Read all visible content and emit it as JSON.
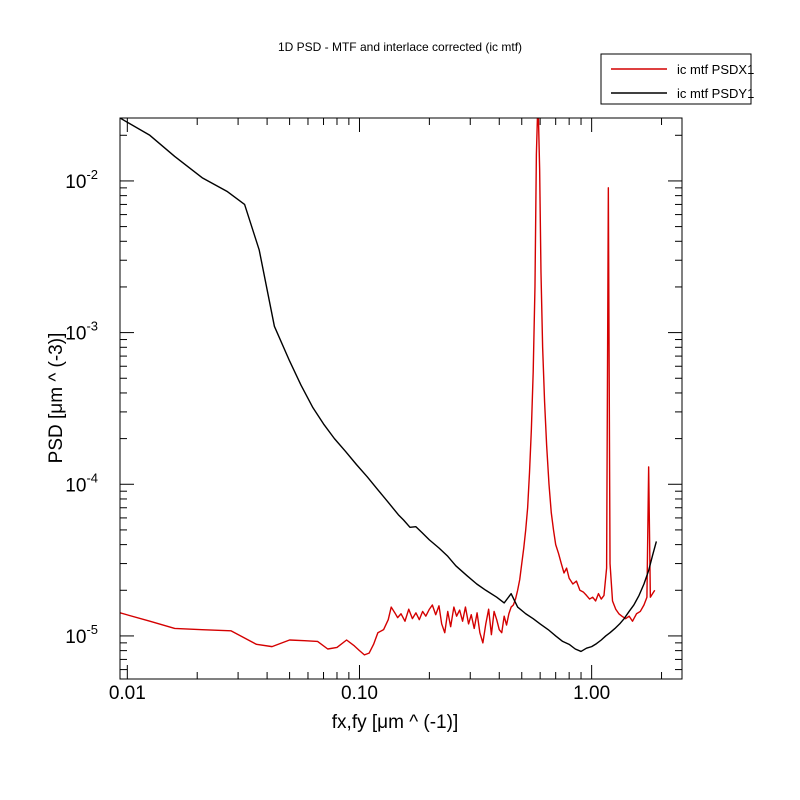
{
  "chart_data": {
    "type": "line",
    "title": "1D PSD -  MTF and interlace corrected (ic mtf)",
    "xlabel": "fx,fy [μm ^ (-1)]",
    "ylabel": "PSD [μm ^ (-3)]",
    "x_scale": "log",
    "y_scale": "log",
    "xlim": [
      0.0093,
      2.45
    ],
    "ylim": [
      5.2e-06,
      0.026
    ],
    "x_ticks": [
      {
        "value": 0.01,
        "label": "0.01"
      },
      {
        "value": 0.1,
        "label": "0.10"
      },
      {
        "value": 1.0,
        "label": "1.00"
      }
    ],
    "y_ticks": [
      {
        "value": 1e-05,
        "mantissa": "10",
        "exp": "-5"
      },
      {
        "value": 0.0001,
        "mantissa": "10",
        "exp": "-4"
      },
      {
        "value": 0.001,
        "mantissa": "10",
        "exp": "-3"
      },
      {
        "value": 0.01,
        "mantissa": "10",
        "exp": "-2"
      }
    ],
    "legend_position": "top-right",
    "series": [
      {
        "name": "ic mtf PSDX1",
        "color": "#d40000",
        "points": [
          [
            0.0093,
            1.42e-05
          ],
          [
            0.0125,
            1.25e-05
          ],
          [
            0.016,
            1.12e-05
          ],
          [
            0.021,
            1.1e-05
          ],
          [
            0.028,
            1.08e-05
          ],
          [
            0.036,
            8.8e-06
          ],
          [
            0.042,
            8.5e-06
          ],
          [
            0.05,
            9.4e-06
          ],
          [
            0.058,
            9.3e-06
          ],
          [
            0.066,
            9.2e-06
          ],
          [
            0.073,
            8.2e-06
          ],
          [
            0.08,
            8.4e-06
          ],
          [
            0.088,
            9.4e-06
          ],
          [
            0.095,
            8.6e-06
          ],
          [
            0.1,
            8e-06
          ],
          [
            0.105,
            7.5e-06
          ],
          [
            0.11,
            7.7e-06
          ],
          [
            0.115,
            8.8e-06
          ],
          [
            0.12,
            1.05e-05
          ],
          [
            0.127,
            1.1e-05
          ],
          [
            0.133,
            1.28e-05
          ],
          [
            0.137,
            1.55e-05
          ],
          [
            0.142,
            1.42e-05
          ],
          [
            0.146,
            1.32e-05
          ],
          [
            0.151,
            1.4e-05
          ],
          [
            0.157,
            1.25e-05
          ],
          [
            0.163,
            1.5e-05
          ],
          [
            0.169,
            1.3e-05
          ],
          [
            0.175,
            1.42e-05
          ],
          [
            0.181,
            1.28e-05
          ],
          [
            0.187,
            1.45e-05
          ],
          [
            0.193,
            1.35e-05
          ],
          [
            0.2,
            1.5e-05
          ],
          [
            0.206,
            1.6e-05
          ],
          [
            0.213,
            1.38e-05
          ],
          [
            0.22,
            1.58e-05
          ],
          [
            0.226,
            1.2e-05
          ],
          [
            0.233,
            1.05e-05
          ],
          [
            0.24,
            1.45e-05
          ],
          [
            0.247,
            1.15e-05
          ],
          [
            0.255,
            1.55e-05
          ],
          [
            0.262,
            1.35e-05
          ],
          [
            0.27,
            1.48e-05
          ],
          [
            0.278,
            1.25e-05
          ],
          [
            0.286,
            1.55e-05
          ],
          [
            0.295,
            1.2e-05
          ],
          [
            0.303,
            1.38e-05
          ],
          [
            0.312,
            1.12e-05
          ],
          [
            0.321,
            1.42e-05
          ],
          [
            0.33,
            1.05e-05
          ],
          [
            0.34,
            9e-06
          ],
          [
            0.35,
            1.2e-05
          ],
          [
            0.36,
            1.5e-05
          ],
          [
            0.37,
            1.02e-05
          ],
          [
            0.38,
            1.45e-05
          ],
          [
            0.39,
            1.28e-05
          ],
          [
            0.4,
            1.1e-05
          ],
          [
            0.41,
            1.05e-05
          ],
          [
            0.42,
            1.35e-05
          ],
          [
            0.43,
            1.18e-05
          ],
          [
            0.44,
            1.4e-05
          ],
          [
            0.45,
            1.55e-05
          ],
          [
            0.46,
            1.6e-05
          ],
          [
            0.47,
            1.75e-05
          ],
          [
            0.48,
            2e-05
          ],
          [
            0.49,
            2.35e-05
          ],
          [
            0.5,
            3e-05
          ],
          [
            0.51,
            3.8e-05
          ],
          [
            0.52,
            5e-05
          ],
          [
            0.53,
            7e-05
          ],
          [
            0.54,
            0.00012
          ],
          [
            0.55,
            0.00023
          ],
          [
            0.56,
            0.00055
          ],
          [
            0.57,
            0.002
          ],
          [
            0.578,
            0.015
          ],
          [
            0.584,
            0.026
          ],
          [
            0.59,
            0.026
          ],
          [
            0.597,
            0.012
          ],
          [
            0.605,
            0.0025
          ],
          [
            0.615,
            0.0008
          ],
          [
            0.627,
            0.00035
          ],
          [
            0.64,
            0.00018
          ],
          [
            0.655,
            0.0001
          ],
          [
            0.67,
            6.5e-05
          ],
          [
            0.685,
            5e-05
          ],
          [
            0.7,
            4e-05
          ],
          [
            0.72,
            3.5e-05
          ],
          [
            0.74,
            3e-05
          ],
          [
            0.76,
            2.6e-05
          ],
          [
            0.78,
            2.8e-05
          ],
          [
            0.8,
            2.4e-05
          ],
          [
            0.83,
            2.2e-05
          ],
          [
            0.86,
            2.3e-05
          ],
          [
            0.89,
            2e-05
          ],
          [
            0.92,
            1.95e-05
          ],
          [
            0.95,
            1.85e-05
          ],
          [
            0.98,
            1.75e-05
          ],
          [
            1.01,
            1.8e-05
          ],
          [
            1.04,
            1.7e-05
          ],
          [
            1.07,
            1.9e-05
          ],
          [
            1.1,
            1.75e-05
          ],
          [
            1.13,
            1.85e-05
          ],
          [
            1.16,
            2.8e-05
          ],
          [
            1.18,
            0.009
          ],
          [
            1.2,
            3e-05
          ],
          [
            1.23,
            1.7e-05
          ],
          [
            1.27,
            1.5e-05
          ],
          [
            1.31,
            1.4e-05
          ],
          [
            1.35,
            1.35e-05
          ],
          [
            1.4,
            1.3e-05
          ],
          [
            1.45,
            1.35e-05
          ],
          [
            1.5,
            1.25e-05
          ],
          [
            1.56,
            1.4e-05
          ],
          [
            1.62,
            1.45e-05
          ],
          [
            1.68,
            1.6e-05
          ],
          [
            1.73,
            1.8e-05
          ],
          [
            1.76,
            0.00013
          ],
          [
            1.79,
            1.8e-05
          ],
          [
            1.83,
            1.9e-05
          ],
          [
            1.87,
            2e-05
          ]
        ]
      },
      {
        "name": "ic mtf PSDY1",
        "color": "#000000",
        "points": [
          [
            0.0093,
            0.026
          ],
          [
            0.0125,
            0.02
          ],
          [
            0.016,
            0.0145
          ],
          [
            0.021,
            0.0105
          ],
          [
            0.027,
            0.0085
          ],
          [
            0.032,
            0.007
          ],
          [
            0.037,
            0.0035
          ],
          [
            0.043,
            0.0011
          ],
          [
            0.05,
            0.00065
          ],
          [
            0.056,
            0.00045
          ],
          [
            0.063,
            0.00032
          ],
          [
            0.07,
            0.00025
          ],
          [
            0.078,
            0.0002
          ],
          [
            0.087,
            0.000165
          ],
          [
            0.097,
            0.000135
          ],
          [
            0.108,
            0.000112
          ],
          [
            0.12,
            9.2e-05
          ],
          [
            0.133,
            7.6e-05
          ],
          [
            0.147,
            6.3e-05
          ],
          [
            0.155,
            5.8e-05
          ],
          [
            0.165,
            5.2e-05
          ],
          [
            0.175,
            5.25e-05
          ],
          [
            0.186,
            4.8e-05
          ],
          [
            0.2,
            4.3e-05
          ],
          [
            0.22,
            3.8e-05
          ],
          [
            0.24,
            3.35e-05
          ],
          [
            0.26,
            2.9e-05
          ],
          [
            0.29,
            2.5e-05
          ],
          [
            0.32,
            2.2e-05
          ],
          [
            0.35,
            2e-05
          ],
          [
            0.39,
            1.8e-05
          ],
          [
            0.42,
            1.65e-05
          ],
          [
            0.45,
            1.9e-05
          ],
          [
            0.48,
            1.55e-05
          ],
          [
            0.52,
            1.4e-05
          ],
          [
            0.56,
            1.3e-05
          ],
          [
            0.6,
            1.2e-05
          ],
          [
            0.65,
            1.1e-05
          ],
          [
            0.7,
            1e-05
          ],
          [
            0.75,
            9.2e-06
          ],
          [
            0.8,
            8.8e-06
          ],
          [
            0.85,
            8.2e-06
          ],
          [
            0.9,
            7.9e-06
          ],
          [
            0.95,
            8.3e-06
          ],
          [
            1.0,
            8.5e-06
          ],
          [
            1.05,
            8.9e-06
          ],
          [
            1.1,
            9.4e-06
          ],
          [
            1.15,
            1e-05
          ],
          [
            1.2,
            1.05e-05
          ],
          [
            1.26,
            1.12e-05
          ],
          [
            1.32,
            1.2e-05
          ],
          [
            1.38,
            1.3e-05
          ],
          [
            1.45,
            1.45e-05
          ],
          [
            1.52,
            1.6e-05
          ],
          [
            1.6,
            1.85e-05
          ],
          [
            1.68,
            2.2e-05
          ],
          [
            1.76,
            2.7e-05
          ],
          [
            1.83,
            3.4e-05
          ],
          [
            1.9,
            4.2e-05
          ]
        ]
      }
    ]
  }
}
